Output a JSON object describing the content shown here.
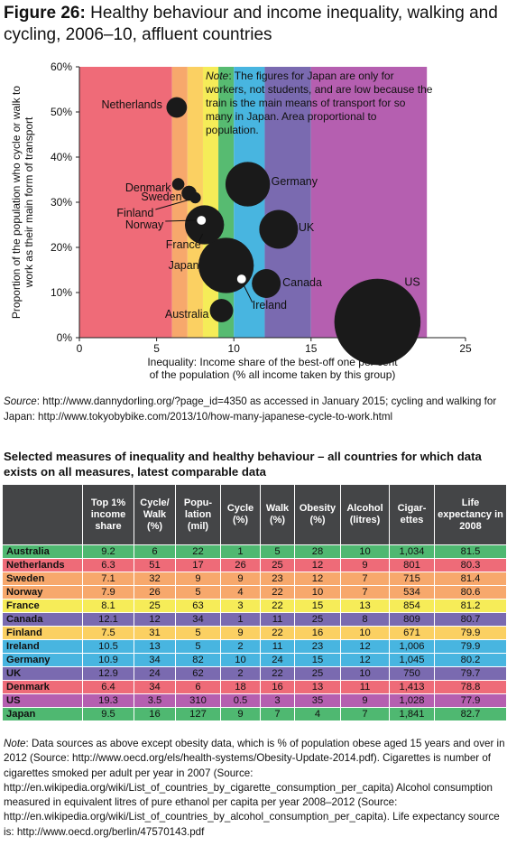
{
  "figure": {
    "label": "Figure 26:",
    "title": "Healthy behaviour and income inequality, walking and cycling, 2006–10, affluent countries"
  },
  "chart_data": {
    "type": "scatter",
    "subtype": "bubble",
    "xlabel": "Inequality: Income share of the best-off one per cent of the population (% all income taken by this group)",
    "ylabel": "Proportion of the population who cycle or walk to work as their main form of transport",
    "xlim": [
      0,
      25
    ],
    "ylim": [
      0,
      60
    ],
    "x_ticks": [
      0,
      5,
      10,
      15,
      20,
      25
    ],
    "y_ticks": [
      "0%",
      "10%",
      "20%",
      "30%",
      "40%",
      "50%",
      "60%"
    ],
    "grid": false,
    "bands": [
      {
        "from": 0,
        "to": 6,
        "color": "#ef6b78"
      },
      {
        "from": 6,
        "to": 7,
        "color": "#f7a86c"
      },
      {
        "from": 7,
        "to": 8,
        "color": "#fbd062"
      },
      {
        "from": 8,
        "to": 9,
        "color": "#f5ec58"
      },
      {
        "from": 9,
        "to": 10,
        "color": "#57bb71"
      },
      {
        "from": 10,
        "to": 12,
        "color": "#48b5e0"
      },
      {
        "from": 12,
        "to": 15,
        "color": "#7a6ab0"
      },
      {
        "from": 15,
        "to": 22.5,
        "color": "#b55fb0"
      }
    ],
    "annotation": "Note: The figures for Japan are only for workers, not students, and are low because the train is the main means of transport for so many in Japan. Area proportional to population.",
    "points": [
      {
        "country": "Netherlands",
        "x": 6.3,
        "y": 51,
        "population": 17,
        "fill": "black"
      },
      {
        "country": "Denmark",
        "x": 6.4,
        "y": 34,
        "population": 6,
        "fill": "black"
      },
      {
        "country": "Sweden",
        "x": 7.1,
        "y": 32,
        "population": 9,
        "fill": "black"
      },
      {
        "country": "Finland",
        "x": 7.5,
        "y": 31,
        "population": 5,
        "fill": "black"
      },
      {
        "country": "Norway",
        "x": 7.9,
        "y": 26,
        "population": 5,
        "fill": "white"
      },
      {
        "country": "France",
        "x": 8.1,
        "y": 25,
        "population": 63,
        "fill": "black"
      },
      {
        "country": "Germany",
        "x": 10.9,
        "y": 34,
        "population": 82,
        "fill": "black"
      },
      {
        "country": "UK",
        "x": 12.9,
        "y": 24,
        "population": 62,
        "fill": "black"
      },
      {
        "country": "Japan",
        "x": 9.5,
        "y": 16,
        "population": 127,
        "fill": "black"
      },
      {
        "country": "Ireland",
        "x": 10.5,
        "y": 13,
        "population": 5,
        "fill": "white"
      },
      {
        "country": "Canada",
        "x": 12.1,
        "y": 12,
        "population": 34,
        "fill": "black"
      },
      {
        "country": "Australia",
        "x": 9.2,
        "y": 6,
        "population": 22,
        "fill": "black"
      },
      {
        "country": "US",
        "x": 19.3,
        "y": 3.5,
        "population": 310,
        "fill": "black"
      }
    ]
  },
  "source": {
    "label": "Source",
    "text": ": http://www.dannydorling.org/?page_id=4350 as accessed in January 2015; cycling and walking for Japan: http://www.tokyobybike.com/2013/10/how-many-japanese-cycle-to-work.html"
  },
  "table": {
    "heading": "Selected measures of inequality and healthy behaviour – all countries for which data exists on all measures, latest comparable data",
    "headers": [
      "",
      "Top 1% income share",
      "Cycle/ Walk (%)",
      "Popu- lation (mil)",
      "Cycle (%)",
      "Walk (%)",
      "Obesity (%)",
      "Alcohol (litres)",
      "Cigar- ettes",
      "Life expectancy in 2008"
    ],
    "rows": [
      {
        "country": "Australia",
        "color": "#4fb871",
        "cells": [
          "9.2",
          "6",
          "22",
          "1",
          "5",
          "28",
          "10",
          "1,034",
          "81.5"
        ]
      },
      {
        "country": "Netherlands",
        "color": "#ee6b78",
        "cells": [
          "6.3",
          "51",
          "17",
          "26",
          "25",
          "12",
          "9",
          "801",
          "80.3"
        ]
      },
      {
        "country": "Sweden",
        "color": "#f7a86c",
        "cells": [
          "7.1",
          "32",
          "9",
          "9",
          "23",
          "12",
          "7",
          "715",
          "81.4"
        ]
      },
      {
        "country": "Norway",
        "color": "#f7a86c",
        "cells": [
          "7.9",
          "26",
          "5",
          "4",
          "22",
          "10",
          "7",
          "534",
          "80.6"
        ]
      },
      {
        "country": "France",
        "color": "#f6ec58",
        "cells": [
          "8.1",
          "25",
          "63",
          "3",
          "22",
          "15",
          "13",
          "854",
          "81.2"
        ]
      },
      {
        "country": "Canada",
        "color": "#7a6ab0",
        "cells": [
          "12.1",
          "12",
          "34",
          "1",
          "11",
          "25",
          "8",
          "809",
          "80.7"
        ]
      },
      {
        "country": "Finland",
        "color": "#fbd062",
        "cells": [
          "7.5",
          "31",
          "5",
          "9",
          "22",
          "16",
          "10",
          "671",
          "79.9"
        ]
      },
      {
        "country": "Ireland",
        "color": "#48b5e0",
        "cells": [
          "10.5",
          "13",
          "5",
          "2",
          "11",
          "23",
          "12",
          "1,006",
          "79.9"
        ]
      },
      {
        "country": "Germany",
        "color": "#48b5e0",
        "cells": [
          "10.9",
          "34",
          "82",
          "10",
          "24",
          "15",
          "12",
          "1,045",
          "80.2"
        ]
      },
      {
        "country": "UK",
        "color": "#7a6ab0",
        "cells": [
          "12.9",
          "24",
          "62",
          "2",
          "22",
          "25",
          "10",
          "750",
          "79.7"
        ]
      },
      {
        "country": "Denmark",
        "color": "#ee6b78",
        "cells": [
          "6.4",
          "34",
          "6",
          "18",
          "16",
          "13",
          "11",
          "1,413",
          "78.8"
        ]
      },
      {
        "country": "US",
        "color": "#b55fb0",
        "cells": [
          "19.3",
          "3.5",
          "310",
          "0.5",
          "3",
          "35",
          "9",
          "1,028",
          "77.9"
        ]
      },
      {
        "country": "Japan",
        "color": "#4fb871",
        "cells": [
          "9.5",
          "16",
          "127",
          "9",
          "7",
          "4",
          "7",
          "1,841",
          "82.7"
        ]
      }
    ]
  },
  "note": {
    "label": "Note",
    "text": ": Data sources as above except obesity data, which is % of population obese aged 15 years and over in 2012 (Source: http://www.oecd.org/els/health-systems/Obesity-Update-2014.pdf). Cigarettes is number of cigarettes smoked per adult per year in 2007 (Source: http://en.wikipedia.org/wiki/List_of_countries_by_cigarette_consumption_per_capita) Alcohol consumption measured in equivalent litres of pure ethanol per capita per year 2008–2012 (Source: http://en.wikipedia.org/wiki/List_of_countries_by_alcohol_consumption_per_capita). Life expectancy source is: http://www.oecd.org/berlin/47570143.pdf"
  }
}
